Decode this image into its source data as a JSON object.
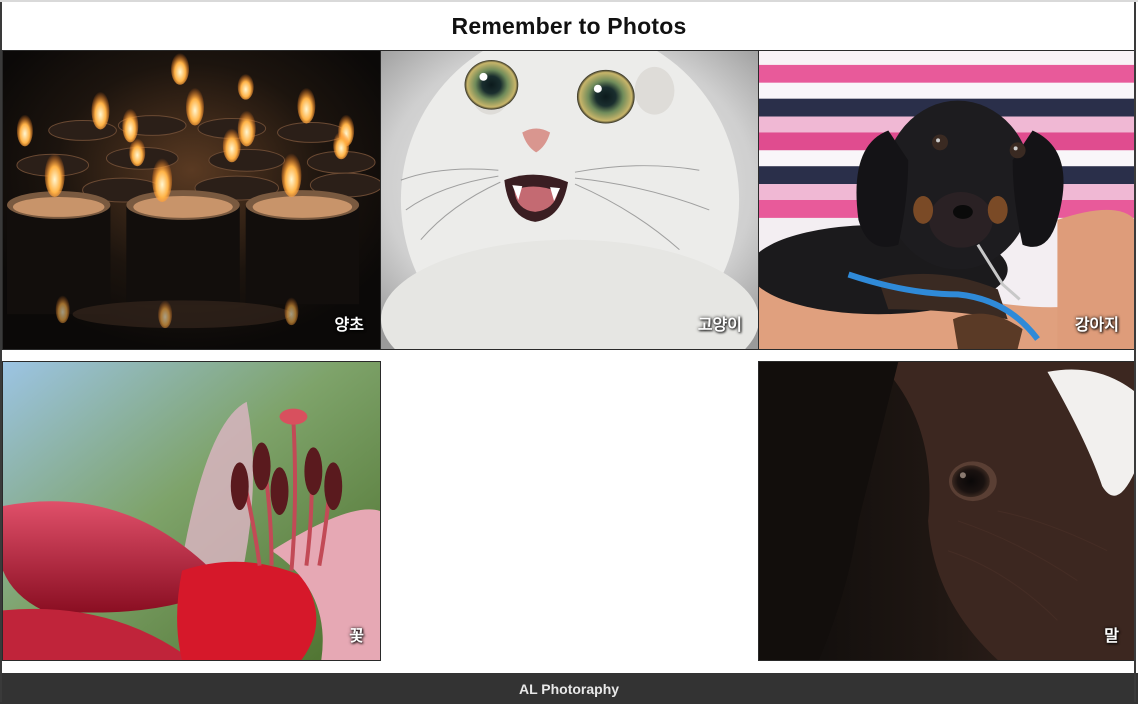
{
  "header": {
    "title": "Remember to Photos"
  },
  "gallery": {
    "items": [
      {
        "caption": "양초",
        "subject": "candles"
      },
      {
        "caption": "고양이",
        "subject": "cat"
      },
      {
        "caption": "강아지",
        "subject": "puppy"
      },
      {
        "caption": "꽃",
        "subject": "lily-flower"
      },
      {
        "caption": "말",
        "subject": "horse"
      }
    ]
  },
  "footer": {
    "text": "AL Photoraphy"
  }
}
